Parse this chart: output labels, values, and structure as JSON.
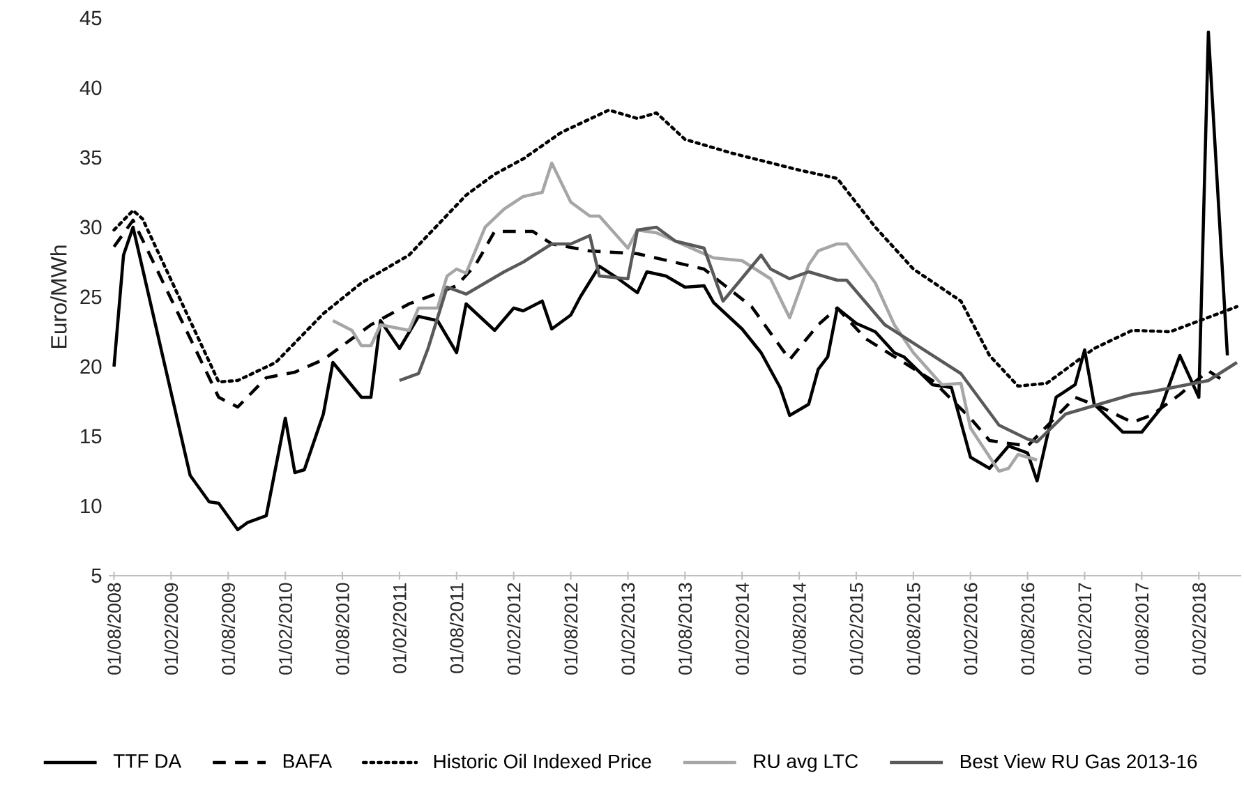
{
  "chart_data": {
    "type": "line",
    "ylabel": "Euro/MWh",
    "legend": "bottom",
    "marker": "none",
    "xlim": [
      "2008-07-15",
      "2018-06-15"
    ],
    "ylim": [
      5,
      45
    ],
    "yticks": [
      5,
      10,
      15,
      20,
      25,
      30,
      35,
      40,
      45
    ],
    "xticks": [
      {
        "value": "2008-08-01",
        "label": "01/08/2008"
      },
      {
        "value": "2009-02-01",
        "label": "01/02/2009"
      },
      {
        "value": "2009-08-01",
        "label": "01/08/2009"
      },
      {
        "value": "2010-02-01",
        "label": "01/02/2010"
      },
      {
        "value": "2010-08-01",
        "label": "01/08/2010"
      },
      {
        "value": "2011-02-01",
        "label": "01/02/2011"
      },
      {
        "value": "2011-08-01",
        "label": "01/08/2011"
      },
      {
        "value": "2012-02-01",
        "label": "01/02/2012"
      },
      {
        "value": "2012-08-01",
        "label": "01/08/2012"
      },
      {
        "value": "2013-02-01",
        "label": "01/02/2013"
      },
      {
        "value": "2013-08-01",
        "label": "01/08/2013"
      },
      {
        "value": "2014-02-01",
        "label": "01/02/2014"
      },
      {
        "value": "2014-08-01",
        "label": "01/08/2014"
      },
      {
        "value": "2015-02-01",
        "label": "01/02/2015"
      },
      {
        "value": "2015-08-01",
        "label": "01/08/2015"
      },
      {
        "value": "2016-02-01",
        "label": "01/02/2016"
      },
      {
        "value": "2016-08-01",
        "label": "01/08/2016"
      },
      {
        "value": "2017-02-01",
        "label": "01/02/2017"
      },
      {
        "value": "2017-08-01",
        "label": "01/08/2017"
      },
      {
        "value": "2018-02-01",
        "label": "01/02/2018"
      }
    ],
    "series": [
      {
        "name": "TTF DA",
        "color": "#000000",
        "line_style": "solid",
        "x": [
          "2008-08",
          "2008-09",
          "2008-10",
          "2009-04",
          "2009-06",
          "2009-07",
          "2009-09",
          "2009-10",
          "2009-12",
          "2010-02",
          "2010-03",
          "2010-04",
          "2010-06",
          "2010-07",
          "2010-10",
          "2010-11",
          "2010-12",
          "2011-02",
          "2011-04",
          "2011-06",
          "2011-08",
          "2011-09",
          "2011-12",
          "2012-02",
          "2012-03",
          "2012-05",
          "2012-06",
          "2012-08",
          "2012-09",
          "2012-11",
          "2013-01",
          "2013-03",
          "2013-04",
          "2013-06",
          "2013-08",
          "2013-10",
          "2013-11",
          "2014-02",
          "2014-04",
          "2014-06",
          "2014-07",
          "2014-09",
          "2014-10",
          "2014-11",
          "2014-12",
          "2015-02",
          "2015-04",
          "2015-06",
          "2015-07",
          "2015-10",
          "2015-12",
          "2016-02",
          "2016-04",
          "2016-06",
          "2016-08",
          "2016-09",
          "2016-11",
          "2017-01",
          "2017-02",
          "2017-03",
          "2017-06",
          "2017-08",
          "2017-10",
          "2017-12",
          "2018-02",
          "2018-03",
          "2018-05"
        ],
        "values": [
          20,
          28,
          30,
          12.2,
          10.3,
          10.2,
          8.3,
          8.8,
          9.3,
          16.3,
          12.4,
          12.6,
          16.6,
          20.3,
          17.8,
          17.8,
          23.3,
          21.3,
          23.6,
          23.3,
          21,
          24.5,
          22.6,
          24.2,
          24,
          24.7,
          22.7,
          23.7,
          25,
          27.2,
          26.3,
          25.3,
          26.8,
          26.5,
          25.7,
          25.8,
          24.6,
          22.7,
          21,
          18.5,
          16.5,
          17.3,
          19.8,
          20.7,
          24.2,
          23.1,
          22.5,
          21,
          20.7,
          18.7,
          18.5,
          13.5,
          12.7,
          14.3,
          13.8,
          11.8,
          17.8,
          18.7,
          21.2,
          17.3,
          15.3,
          15.3,
          17,
          20.8,
          17.8,
          44,
          20.8
        ]
      },
      {
        "name": "BAFA",
        "color": "#000000",
        "line_style": "dashed",
        "x": [
          "2008-08",
          "2008-10",
          "2009-07",
          "2009-09",
          "2009-12",
          "2010-03",
          "2010-06",
          "2010-08",
          "2010-11",
          "2011-03",
          "2011-05",
          "2011-08",
          "2011-10",
          "2011-12",
          "2012-04",
          "2012-06",
          "2012-10",
          "2013-03",
          "2013-10",
          "2014-03",
          "2014-07",
          "2014-10",
          "2014-12",
          "2015-03",
          "2015-10",
          "2016-02",
          "2016-04",
          "2016-08",
          "2017-01",
          "2017-04",
          "2017-07",
          "2017-09",
          "2017-12",
          "2018-03",
          "2018-05"
        ],
        "values": [
          28.6,
          30.5,
          17.8,
          17.1,
          19.2,
          19.6,
          20.5,
          21.5,
          23,
          24.5,
          25,
          25.8,
          27.3,
          29.7,
          29.7,
          28.8,
          28.3,
          28.1,
          27,
          24.3,
          20.5,
          23,
          24.2,
          22,
          19,
          16.3,
          14.7,
          14.3,
          17.8,
          17,
          16,
          16.5,
          18,
          19.7,
          18.8
        ]
      },
      {
        "name": "Historic Oil Indexed Price",
        "color": "#000000",
        "line_style": "dotted",
        "x": [
          "2008-08",
          "2008-10",
          "2008-11",
          "2009-07",
          "2009-09",
          "2010-01",
          "2010-06",
          "2010-10",
          "2011-03",
          "2011-09",
          "2011-12",
          "2012-03",
          "2012-07",
          "2012-12",
          "2013-03",
          "2013-05",
          "2013-08",
          "2014-01",
          "2014-08",
          "2014-12",
          "2015-04",
          "2015-08",
          "2016-01",
          "2016-04",
          "2016-07",
          "2016-10",
          "2017-03",
          "2017-07",
          "2017-11",
          "2018-06"
        ],
        "values": [
          29.8,
          31.2,
          30.6,
          18.9,
          19,
          20.3,
          23.8,
          26,
          28,
          32.3,
          33.8,
          34.9,
          36.8,
          38.4,
          37.8,
          38.2,
          36.3,
          35.3,
          34.1,
          33.5,
          30,
          27,
          24.7,
          20.8,
          18.6,
          18.8,
          21.3,
          22.6,
          22.5,
          24.3
        ]
      },
      {
        "name": "RU avg LTC",
        "color": "#a6a6a6",
        "line_style": "solid",
        "x": [
          "2010-07",
          "2010-09",
          "2010-10",
          "2010-11",
          "2010-12",
          "2011-03",
          "2011-04",
          "2011-06",
          "2011-07",
          "2011-08",
          "2011-09",
          "2011-11",
          "2012-01",
          "2012-03",
          "2012-05",
          "2012-06",
          "2012-08",
          "2012-10",
          "2012-11",
          "2013-02",
          "2013-03",
          "2013-05",
          "2013-11",
          "2014-02",
          "2014-05",
          "2014-07",
          "2014-09",
          "2014-10",
          "2014-12",
          "2015-01",
          "2015-04",
          "2015-06",
          "2015-08",
          "2015-11",
          "2016-01",
          "2016-02",
          "2016-05",
          "2016-06",
          "2016-07",
          "2016-09"
        ],
        "values": [
          23.3,
          22.6,
          21.5,
          21.5,
          23,
          22.6,
          24.2,
          24.2,
          26.5,
          27,
          26.7,
          30,
          31.3,
          32.2,
          32.5,
          34.6,
          31.8,
          30.8,
          30.8,
          28.5,
          29.8,
          29.6,
          27.8,
          27.6,
          26.3,
          23.5,
          27.3,
          28.3,
          28.8,
          28.8,
          26,
          23,
          21,
          18.7,
          18.8,
          15.6,
          12.5,
          12.7,
          13.7,
          13.3
        ]
      },
      {
        "name": "Best View RU Gas 2013-16",
        "color": "#595959",
        "line_style": "solid",
        "x": [
          "2011-02",
          "2011-04",
          "2011-05",
          "2011-07",
          "2011-09",
          "2011-11",
          "2012-01",
          "2012-03",
          "2012-06",
          "2012-08",
          "2012-10",
          "2012-11",
          "2013-02",
          "2013-03",
          "2013-05",
          "2013-07",
          "2013-10",
          "2013-12",
          "2014-04",
          "2014-05",
          "2014-07",
          "2014-09",
          "2014-12",
          "2015-01",
          "2015-05",
          "2016-01",
          "2016-05",
          "2016-08",
          "2016-09",
          "2016-12",
          "2017-07",
          "2017-09",
          "2018-03",
          "2018-06"
        ],
        "values": [
          19,
          19.5,
          21.3,
          25.7,
          25.2,
          26,
          26.8,
          27.5,
          28.8,
          28.8,
          29.4,
          26.5,
          26.3,
          29.8,
          30,
          29,
          28.5,
          24.7,
          28,
          27,
          26.3,
          26.8,
          26.2,
          26.2,
          23,
          19.5,
          15.8,
          14.8,
          14.6,
          16.6,
          18,
          18.2,
          19,
          20.3
        ]
      }
    ]
  }
}
